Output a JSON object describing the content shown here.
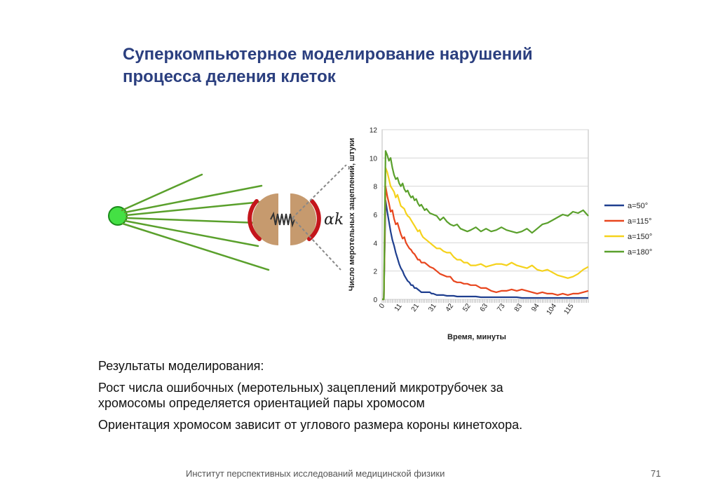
{
  "slide": {
    "title_lines": [
      "Суперкомпьютерное моделирование нарушений",
      "процесса деления клеток"
    ],
    "diagram": {
      "angle_label": "αk"
    },
    "results": {
      "heading": "Результаты моделирования:",
      "line1": "Рост числа ошибочных (меротельных) зацеплений микротрубочек за",
      "line2": "хромосомы определяется ориентацией пары хромосом",
      "line3": "Ориентация хромосом зависит от углового размера короны кинетохора."
    },
    "footer": {
      "institute": "Институт перспективных исследований медицинской физики",
      "page": "71"
    }
  },
  "chart_data": {
    "type": "line",
    "xlabel": "Время, минуты",
    "ylabel": "Число меротельных зацеплений, штуки",
    "ylim": [
      0,
      12
    ],
    "yticks": [
      0,
      2,
      4,
      6,
      8,
      10,
      12
    ],
    "xlim": [
      0,
      121
    ],
    "xtick_labels": [
      "0",
      "11",
      "21",
      "31",
      "42",
      "52",
      "63",
      "73",
      "83",
      "94",
      "104",
      "115"
    ],
    "grid": true,
    "legend_position": "right",
    "series": [
      {
        "name": "a=50°",
        "color": "#1f3f8f",
        "x": [
          0,
          1,
          2,
          3,
          4,
          5,
          6,
          7,
          8,
          9,
          10,
          11,
          12,
          13,
          14,
          15,
          16,
          17,
          18,
          19,
          20,
          21,
          22,
          23,
          24,
          25,
          26,
          27,
          28,
          29,
          30,
          31,
          32,
          33,
          34,
          35,
          36,
          38,
          40,
          42,
          44,
          46,
          48,
          50,
          52,
          55,
          58,
          61,
          64,
          67,
          70,
          73,
          76,
          79,
          82,
          85,
          88,
          91,
          94,
          97,
          100,
          103,
          106,
          109,
          112,
          115,
          118,
          121
        ],
        "y": [
          0,
          0,
          7.0,
          6.2,
          5.5,
          4.8,
          4.2,
          3.8,
          3.3,
          2.9,
          2.5,
          2.2,
          2.0,
          1.7,
          1.5,
          1.3,
          1.2,
          1.0,
          1.0,
          0.8,
          0.8,
          0.7,
          0.6,
          0.5,
          0.5,
          0.5,
          0.5,
          0.5,
          0.5,
          0.4,
          0.4,
          0.35,
          0.3,
          0.3,
          0.3,
          0.3,
          0.3,
          0.25,
          0.25,
          0.25,
          0.2,
          0.2,
          0.2,
          0.2,
          0.2,
          0.2,
          0.15,
          0.15,
          0.15,
          0.15,
          0.15,
          0.15,
          0.15,
          0.15,
          0.1,
          0.1,
          0.1,
          0.1,
          0.1,
          0.1,
          0.1,
          0.1,
          0.1,
          0.1,
          0.1,
          0.1,
          0.1,
          0.1
        ]
      },
      {
        "name": "a=115°",
        "color": "#e8461e",
        "x": [
          0,
          1,
          2,
          3,
          4,
          5,
          6,
          7,
          8,
          9,
          10,
          11,
          12,
          13,
          14,
          15,
          16,
          17,
          18,
          19,
          20,
          21,
          22,
          23,
          24,
          25,
          26,
          28,
          30,
          32,
          34,
          36,
          38,
          40,
          42,
          44,
          46,
          48,
          50,
          52,
          55,
          58,
          61,
          64,
          67,
          70,
          73,
          76,
          79,
          82,
          85,
          88,
          91,
          94,
          97,
          100,
          103,
          106,
          109,
          112,
          115,
          118,
          121
        ],
        "y": [
          0,
          0,
          8.0,
          7.3,
          6.8,
          6.2,
          6.3,
          5.7,
          5.3,
          5.4,
          5.0,
          4.6,
          4.3,
          4.4,
          4.0,
          3.8,
          3.6,
          3.5,
          3.3,
          3.2,
          3.0,
          2.8,
          2.8,
          2.6,
          2.6,
          2.6,
          2.5,
          2.3,
          2.2,
          2.0,
          1.8,
          1.7,
          1.6,
          1.6,
          1.3,
          1.2,
          1.2,
          1.1,
          1.1,
          1.0,
          1.0,
          0.8,
          0.8,
          0.6,
          0.5,
          0.6,
          0.6,
          0.7,
          0.6,
          0.7,
          0.6,
          0.5,
          0.4,
          0.5,
          0.4,
          0.4,
          0.3,
          0.4,
          0.3,
          0.4,
          0.4,
          0.5,
          0.6
        ]
      },
      {
        "name": "a=150°",
        "color": "#f5d21c",
        "x": [
          0,
          1,
          2,
          3,
          4,
          5,
          6,
          7,
          8,
          9,
          10,
          11,
          12,
          13,
          14,
          15,
          16,
          17,
          18,
          19,
          20,
          21,
          22,
          23,
          24,
          25,
          26,
          28,
          30,
          32,
          34,
          36,
          38,
          40,
          42,
          44,
          46,
          48,
          50,
          52,
          55,
          58,
          61,
          64,
          67,
          70,
          73,
          76,
          79,
          82,
          85,
          88,
          91,
          94,
          97,
          100,
          103,
          106,
          109,
          112,
          115,
          118,
          121
        ],
        "y": [
          0,
          0,
          9.3,
          9.0,
          8.5,
          8.0,
          7.8,
          7.6,
          7.2,
          7.4,
          7.0,
          6.6,
          6.5,
          6.4,
          6.1,
          5.9,
          5.8,
          5.6,
          5.4,
          5.2,
          5.0,
          4.8,
          4.9,
          4.6,
          4.4,
          4.3,
          4.2,
          4.0,
          3.8,
          3.6,
          3.6,
          3.4,
          3.3,
          3.3,
          3.0,
          2.8,
          2.8,
          2.6,
          2.6,
          2.4,
          2.4,
          2.5,
          2.3,
          2.4,
          2.5,
          2.5,
          2.4,
          2.6,
          2.4,
          2.3,
          2.2,
          2.4,
          2.1,
          2.0,
          2.1,
          1.9,
          1.7,
          1.6,
          1.5,
          1.6,
          1.8,
          2.1,
          2.3
        ]
      },
      {
        "name": "a=180°",
        "color": "#5aa02c",
        "x": [
          0,
          1,
          2,
          3,
          4,
          5,
          6,
          7,
          8,
          9,
          10,
          11,
          12,
          13,
          14,
          15,
          16,
          17,
          18,
          19,
          20,
          21,
          22,
          23,
          24,
          25,
          26,
          28,
          30,
          32,
          34,
          36,
          38,
          40,
          42,
          44,
          46,
          48,
          50,
          52,
          55,
          58,
          61,
          64,
          67,
          70,
          73,
          76,
          79,
          82,
          85,
          88,
          91,
          94,
          97,
          100,
          103,
          106,
          109,
          112,
          115,
          118,
          121
        ],
        "y": [
          0,
          0,
          10.5,
          10.2,
          9.8,
          10.0,
          9.3,
          8.8,
          8.5,
          8.6,
          8.2,
          8.0,
          8.2,
          7.8,
          7.6,
          7.7,
          7.4,
          7.2,
          7.3,
          7.0,
          7.1,
          6.8,
          6.6,
          6.7,
          6.5,
          6.3,
          6.4,
          6.1,
          6.0,
          5.9,
          5.6,
          5.8,
          5.5,
          5.3,
          5.2,
          5.3,
          5.0,
          4.9,
          4.8,
          4.9,
          5.1,
          4.8,
          5.0,
          4.8,
          4.9,
          5.1,
          4.9,
          4.8,
          4.7,
          4.8,
          5.0,
          4.7,
          5.0,
          5.3,
          5.4,
          5.6,
          5.8,
          6.0,
          5.9,
          6.2,
          6.1,
          6.3,
          5.9
        ]
      }
    ]
  }
}
